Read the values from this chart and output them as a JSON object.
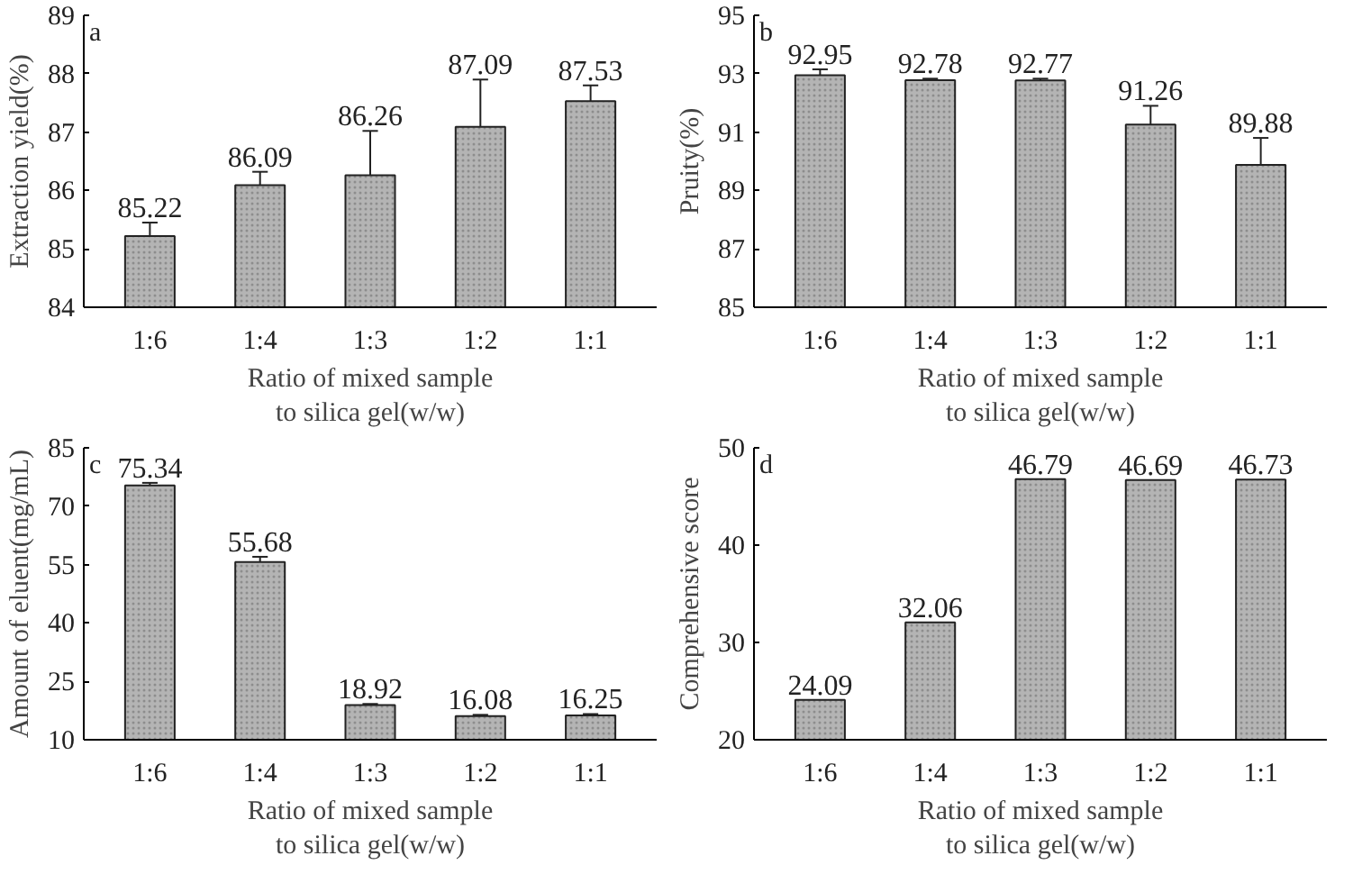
{
  "chart_data": [
    {
      "type": "bar",
      "categories": [
        "1:6",
        "1:4",
        "1:3",
        "1:2",
        "1:1"
      ],
      "values": [
        85.22,
        86.09,
        86.26,
        87.09,
        87.53
      ],
      "errors": [
        [
          85.22,
          85.45
        ],
        [
          86.09,
          86.32
        ],
        [
          86.26,
          87.02
        ],
        [
          87.09,
          87.9
        ],
        [
          87.53,
          87.8
        ]
      ],
      "color": "#b4b4b4",
      "ylim": [
        84,
        89
      ],
      "yticks": [
        84,
        85,
        86,
        87,
        88,
        89
      ],
      "xlabel": "Ratio of mixed sample\nto silica gel(w/w)",
      "ylabel": "Extraction yield(%)",
      "annotations": [
        "a"
      ],
      "data_labels": true,
      "grid": false
    },
    {
      "type": "bar",
      "categories": [
        "1:6",
        "1:4",
        "1:3",
        "1:2",
        "1:1"
      ],
      "values": [
        92.95,
        92.78,
        92.77,
        91.26,
        89.88
      ],
      "errors": [
        [
          92.95,
          93.15
        ],
        [
          92.78,
          92.83
        ],
        [
          92.77,
          92.83
        ],
        [
          91.26,
          91.9
        ],
        [
          89.88,
          90.8
        ]
      ],
      "color": "#b4b4b4",
      "ylim": [
        85,
        95
      ],
      "yticks": [
        85,
        87,
        89,
        91,
        93,
        95
      ],
      "xlabel": "Ratio of mixed sample\nto silica gel(w/w)",
      "ylabel": "Pruity(%)",
      "annotations": [
        "b"
      ],
      "data_labels": true,
      "grid": false
    },
    {
      "type": "bar",
      "categories": [
        "1:6",
        "1:4",
        "1:3",
        "1:2",
        "1:1"
      ],
      "values": [
        75.34,
        55.68,
        18.92,
        16.08,
        16.25
      ],
      "errors": [
        [
          75.34,
          76
        ],
        [
          55.68,
          57
        ],
        [
          18.92,
          19.2
        ],
        [
          16.08,
          16.4
        ],
        [
          16.25,
          16.6
        ]
      ],
      "color": "#b4b4b4",
      "ylim": [
        10,
        85
      ],
      "yticks": [
        10,
        25,
        40,
        55,
        70,
        85
      ],
      "xlabel": "Ratio of mixed sample\nto silica gel(w/w)",
      "ylabel": "Amount of eluent(mg/mL)",
      "annotations": [
        "c"
      ],
      "data_labels": true,
      "grid": false
    },
    {
      "type": "bar",
      "categories": [
        "1:6",
        "1:4",
        "1:3",
        "1:2",
        "1:1"
      ],
      "values": [
        24.09,
        32.06,
        46.79,
        46.69,
        46.73
      ],
      "color": "#b4b4b4",
      "ylim": [
        20,
        50
      ],
      "yticks": [
        20,
        30,
        40,
        50
      ],
      "xlabel": "Ratio of mixed sample\nto silica gel(w/w)",
      "ylabel": "Comprehensive score",
      "annotations": [
        "d"
      ],
      "data_labels": true,
      "grid": false
    }
  ]
}
